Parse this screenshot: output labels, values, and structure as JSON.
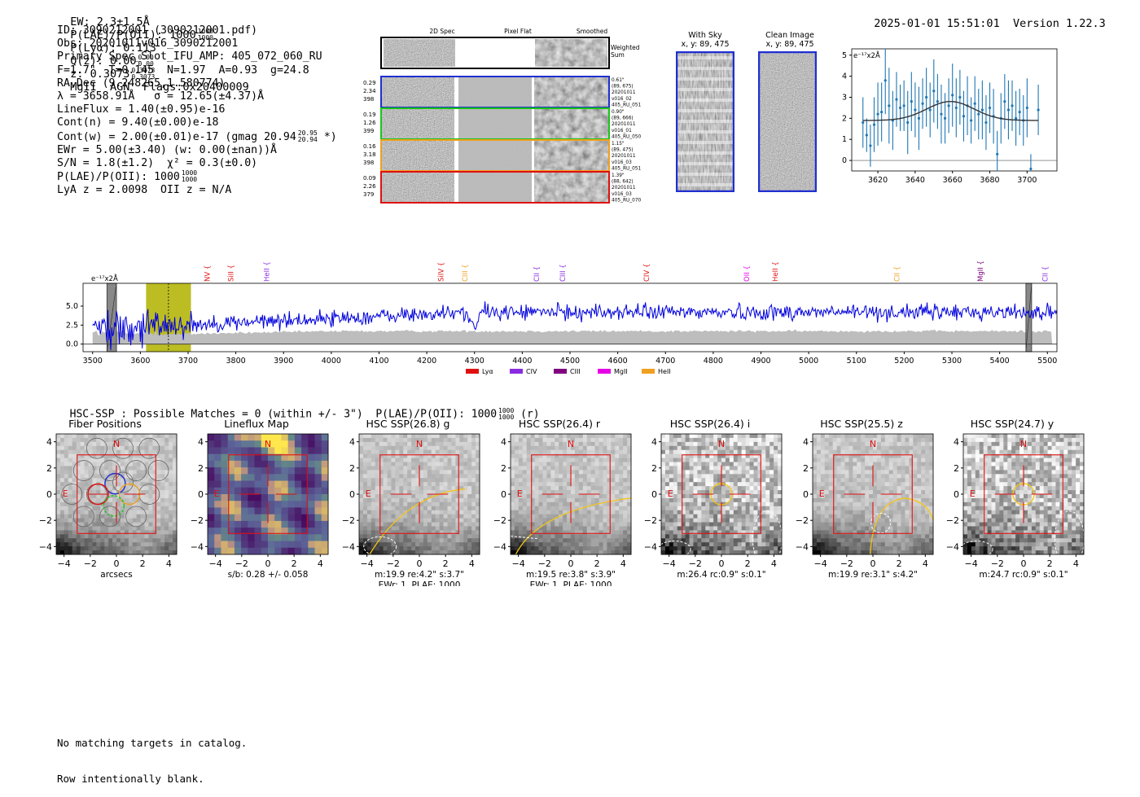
{
  "header": {
    "ew": "EW: 2.3±1.5Å",
    "plae_label": "P(LAE)/P(OII): 1000",
    "plae_hi": "1000",
    "plae_lo": "1000",
    "plya": "P(Lyα): 0.113",
    "qz_label": "Q(z): 0.00",
    "qz_hi": "0.00",
    "qz_lo": "0.00",
    "z_label": "z: 0.3073",
    "z_hi": "0.3073",
    "z_lo": "0.3073",
    "line_class": "MgII  AGN  Flags:0x20400009",
    "timestamp": "2025-01-01 15:51:01",
    "version": "Version 1.22.3"
  },
  "info": {
    "id": "ID: 3090212001 (3090212001.pdf)",
    "obs": "Obs: 20201011v016_3090212001",
    "primary": "Primary Spec_Slot_IFU_AMP: 405_072_060_RU",
    "fiber": "F=1.7\"  T=0.145  N=1.97  A=0.93  g=24.8",
    "radec": "RA,Dec (9.248265,1.580774)",
    "lambda": "λ = 3658.91Å   σ = 12.65(±4.37)Å",
    "lineflux": "LineFlux = 1.40(±0.95)e-16",
    "contn": "Cont(n) = 9.40(±0.00)e-18",
    "contw": "Cont(w) = 2.00(±0.01)e-17 (gmag 20.94",
    "gmag_hi": "20.95",
    "gmag_lo": "20.94",
    "contw_end": "*)",
    "ewr": "EWr = 5.00(±3.40) (w: 0.00(±nan))Å",
    "sn": "S/N = 1.8(±1.2)  χ² = 0.3(±0.0)",
    "plae": "P(LAE)/P(OII): 1000",
    "plae_hi": "1000",
    "plae_lo": "1000",
    "lyaz": "LyA z = 2.0098  OII z = N/A"
  },
  "cutouts": {
    "col_labels": [
      "2D Spec",
      "Pixel Flat",
      "Smoothed"
    ],
    "weighted_sum": [
      "Weighted",
      "Sum"
    ],
    "rows": [
      {
        "left": [
          "0.29",
          "2.34",
          "398"
        ],
        "right": [
          "0.61\"",
          "(89, 675)",
          "20201011",
          "v016_02",
          "405_RU_051"
        ],
        "color": "#1f2fd0"
      },
      {
        "left": [
          "0.19",
          "1.26",
          "399"
        ],
        "right": [
          "0.90\"",
          "(89, 666)",
          "20201011",
          "v016_01",
          "405_RU_050"
        ],
        "color": "#19c419"
      },
      {
        "left": [
          "0.16",
          "3.18",
          "398"
        ],
        "right": [
          "1.15\"",
          "(89, 475)",
          "20201011",
          "v016_03",
          "405_RU_051"
        ],
        "color": "#f0a020"
      },
      {
        "left": [
          "0.09",
          "2.26",
          "379"
        ],
        "right": [
          "1.39\"",
          "(88, 642)",
          "20201011",
          "v016_03",
          "405_RU_070"
        ],
        "color": "#e01010"
      }
    ]
  },
  "sky": {
    "with_sky": "With Sky",
    "with_sky_xy": "x, y: 89, 475",
    "clean": "Clean Image",
    "clean_xy": "x, y: 89, 475"
  },
  "fit_plot": {
    "unit": "e⁻¹⁷x2Å",
    "xticks": [
      "3620",
      "3640",
      "3660",
      "3680",
      "3700"
    ],
    "yticks": [
      "5",
      "4",
      "3",
      "2",
      "1",
      "0"
    ],
    "xlim": [
      3606,
      3716
    ],
    "ylim": [
      -0.5,
      5.3
    ],
    "points": [
      [
        3612,
        1.8,
        1.2
      ],
      [
        3614,
        1.2,
        0.8
      ],
      [
        3616,
        0.7,
        1.0
      ],
      [
        3618,
        1.7,
        1.3
      ],
      [
        3620,
        2.2,
        1.5
      ],
      [
        3622,
        2.3,
        1.4
      ],
      [
        3624,
        3.8,
        1.6
      ],
      [
        3626,
        2.6,
        1.8
      ],
      [
        3628,
        1.9,
        1.4
      ],
      [
        3630,
        2.9,
        1.3
      ],
      [
        3632,
        2.5,
        1.1
      ],
      [
        3634,
        2.6,
        1.2
      ],
      [
        3636,
        1.8,
        1.5
      ],
      [
        3638,
        2.8,
        1.4
      ],
      [
        3640,
        2.4,
        1.3
      ],
      [
        3642,
        2.0,
        1.5
      ],
      [
        3644,
        2.7,
        1.2
      ],
      [
        3646,
        3.0,
        1.4
      ],
      [
        3648,
        2.4,
        1.3
      ],
      [
        3650,
        3.3,
        1.5
      ],
      [
        3652,
        2.8,
        1.3
      ],
      [
        3654,
        2.2,
        1.4
      ],
      [
        3656,
        2.0,
        1.2
      ],
      [
        3658,
        2.6,
        1.3
      ],
      [
        3660,
        3.1,
        1.5
      ],
      [
        3662,
        2.5,
        1.4
      ],
      [
        3664,
        3.0,
        1.3
      ],
      [
        3666,
        2.1,
        1.2
      ],
      [
        3668,
        2.6,
        1.4
      ],
      [
        3670,
        1.9,
        1.1
      ],
      [
        3672,
        2.7,
        1.3
      ],
      [
        3674,
        2.2,
        1.2
      ],
      [
        3676,
        2.4,
        1.4
      ],
      [
        3678,
        1.8,
        1.3
      ],
      [
        3680,
        2.5,
        1.2
      ],
      [
        3682,
        2.1,
        1.3
      ],
      [
        3684,
        0.3,
        1.1
      ],
      [
        3686,
        2.0,
        1.2
      ],
      [
        3688,
        2.8,
        1.3
      ],
      [
        3690,
        2.4,
        1.4
      ],
      [
        3692,
        2.6,
        1.2
      ],
      [
        3694,
        2.0,
        1.3
      ],
      [
        3696,
        2.3,
        1.1
      ],
      [
        3698,
        1.9,
        1.2
      ],
      [
        3700,
        2.5,
        1.4
      ],
      [
        3702,
        -0.4,
        0.7
      ],
      [
        3706,
        2.4,
        1.2
      ]
    ],
    "model": {
      "base": 1.9,
      "amp": 0.9,
      "center": 3658.9,
      "sigma": 12.65
    }
  },
  "spectrum": {
    "unit": "e⁻¹⁷x2Å",
    "xlim": [
      3480,
      5520
    ],
    "ylim": [
      -1.0,
      8.0
    ],
    "xticks": [
      "3500",
      "3600",
      "3700",
      "3800",
      "3900",
      "4000",
      "4100",
      "4200",
      "4300",
      "4400",
      "4500",
      "4600",
      "4700",
      "4800",
      "4900",
      "5000",
      "5100",
      "5200",
      "5300",
      "5400",
      "5500"
    ],
    "yticks": [
      "5.0",
      "2.5",
      "0.0"
    ],
    "highlight": [
      3612,
      3706
    ],
    "marker": 3658.9,
    "masks": [
      [
        3530,
        3550
      ],
      [
        5455,
        5467
      ]
    ],
    "lines": [
      {
        "name": "NV",
        "wave": 3740,
        "color": "#e01010"
      },
      {
        "name": "SiII",
        "wave": 3790,
        "color": "#e01010"
      },
      {
        "name": "HeII",
        "wave": 3865,
        "color": "#8a2be2"
      },
      {
        "name": "SiIV",
        "wave": 4230,
        "color": "#e01010"
      },
      {
        "name": "CIII",
        "wave": 4280,
        "color": "#f0a020"
      },
      {
        "name": "CII",
        "wave": 4430,
        "color": "#8a2be2"
      },
      {
        "name": "CIII",
        "wave": 4485,
        "color": "#8a2be2"
      },
      {
        "name": "CIV",
        "wave": 4660,
        "color": "#e01010"
      },
      {
        "name": "OII",
        "wave": 4870,
        "color": "#e600e6"
      },
      {
        "name": "HeII",
        "wave": 4930,
        "color": "#e01010"
      },
      {
        "name": "CII",
        "wave": 5185,
        "color": "#f0a020"
      },
      {
        "name": "MgII",
        "wave": 5360,
        "color": "#800080"
      },
      {
        "name": "CII",
        "wave": 5495,
        "color": "#8a2be2"
      }
    ],
    "legend": [
      {
        "label": "Lyα",
        "color": "#e01010"
      },
      {
        "label": "CIV",
        "color": "#8a2be2"
      },
      {
        "label": "CIII",
        "color": "#800080"
      },
      {
        "label": "MgII",
        "color": "#e600e6"
      },
      {
        "label": "HeII",
        "color": "#f0a020"
      }
    ]
  },
  "hsc": {
    "summary": "HSC-SSP : Possible Matches = 0 (within +/- 3\")  P(LAE)/P(OII): 1000",
    "summary_hi": "1000",
    "summary_lo": "1000",
    "summary_end": "(r)",
    "ticks": [
      "4",
      "2",
      "0",
      "−2",
      "−4"
    ],
    "xticks": [
      "−4",
      "−2",
      "0",
      "2",
      "4"
    ],
    "north": "N",
    "east": "E",
    "panels": [
      {
        "title": "Fiber Positions",
        "caption": [
          "arcsecs"
        ]
      },
      {
        "title": "Lineflux Map",
        "caption": [
          "s/b: 0.28 +/- 0.058"
        ]
      },
      {
        "title": "HSC SSP(26.8) g",
        "caption": [
          "m:19.9  re:4.2\"  s:3.7\"",
          "EWr: 1, PLAE: 1000"
        ]
      },
      {
        "title": "HSC SSP(26.4) r",
        "caption": [
          "m:19.5  re:3.8\"  s:3.9\"",
          "EWr: 1, PLAE: 1000"
        ]
      },
      {
        "title": "HSC SSP(26.4) i",
        "caption": [
          "m:26.4 rc:0.9\"  s:0.1\""
        ]
      },
      {
        "title": "HSC SSP(25.5) z",
        "caption": [
          "m:19.9  re:3.1\"  s:4.2\""
        ]
      },
      {
        "title": "HSC SSP(24.7) y",
        "caption": [
          "m:24.7 rc:0.9\"  s:0.1\""
        ]
      }
    ]
  },
  "footer": {
    "line1": "No matching targets in catalog.",
    "line2": "Row intentionally blank."
  },
  "chart_data": [
    {
      "type": "scatter",
      "title": "",
      "xlabel": "",
      "ylabel": "e⁻¹⁷x2Å",
      "xlim": [
        3606,
        3716
      ],
      "ylim": [
        -0.5,
        5.3
      ],
      "note": "see fit_plot.points"
    },
    {
      "type": "line",
      "title": "",
      "xlabel": "",
      "ylabel": "e⁻¹⁷x2Å",
      "xlim": [
        3480,
        5520
      ],
      "ylim": [
        -1.0,
        8.0
      ],
      "note": "see spectrum"
    }
  ]
}
